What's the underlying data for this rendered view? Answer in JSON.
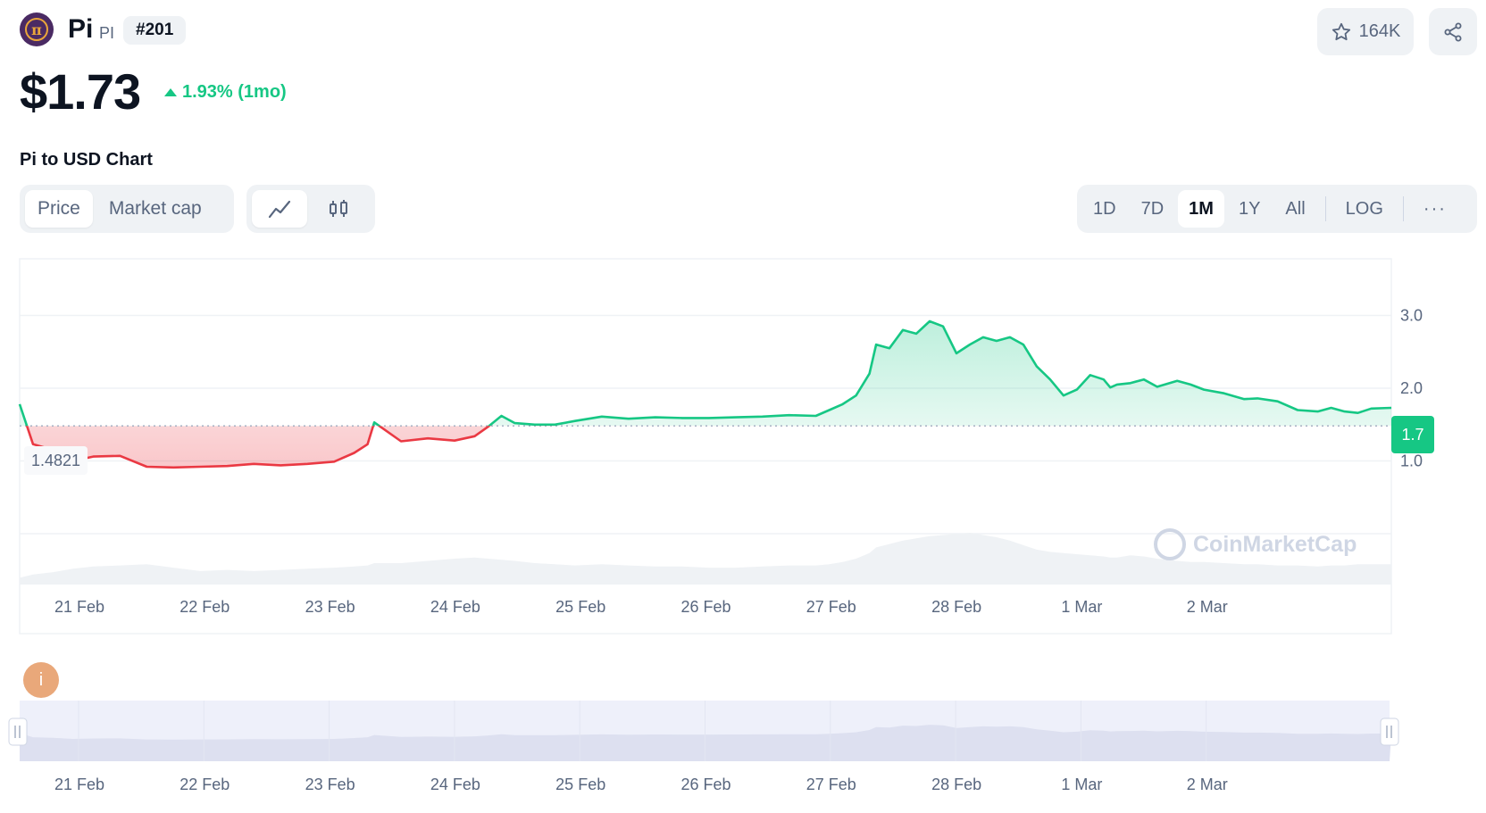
{
  "header": {
    "coin_name": "Pi",
    "coin_symbol": "PI",
    "rank": "#201",
    "watchlist_count": "164K",
    "price": "$1.73",
    "change": "1.93% (1mo)"
  },
  "chart_section": {
    "title": "Pi to USD Chart",
    "tabs": [
      "Price",
      "Market cap"
    ],
    "chart_types": [
      "line-chart-icon",
      "candlestick-icon"
    ],
    "ranges": [
      "1D",
      "7D",
      "1M",
      "1Y",
      "All",
      "LOG"
    ],
    "active_range": "1M",
    "more_label": "···",
    "watermark": "CoinMarketCap"
  },
  "colors": {
    "up": "#16c784",
    "down": "#ea3943",
    "text_secondary": "#58667e"
  },
  "chart_data": {
    "type": "line",
    "baseline_value": 1.4821,
    "baseline_label": "1.4821",
    "current_label": "1.7",
    "y_ticks": [
      "3.0",
      "2.0",
      "1.0"
    ],
    "x_ticks": [
      "21 Feb",
      "22 Feb",
      "23 Feb",
      "24 Feb",
      "25 Feb",
      "26 Feb",
      "27 Feb",
      "28 Feb",
      "1 Mar",
      "2 Mar"
    ],
    "ylim": [
      0.0,
      3.5
    ],
    "x_range": [
      20.35,
      30.6
    ],
    "x": [
      20.35,
      20.45,
      20.6,
      20.75,
      20.9,
      21.1,
      21.3,
      21.5,
      21.7,
      21.9,
      22.1,
      22.3,
      22.5,
      22.7,
      22.85,
      22.95,
      23.0,
      23.2,
      23.4,
      23.6,
      23.75,
      23.85,
      23.95,
      24.05,
      24.2,
      24.35,
      24.5,
      24.7,
      24.9,
      25.1,
      25.3,
      25.5,
      25.7,
      25.9,
      26.1,
      26.3,
      26.4,
      26.5,
      26.6,
      26.7,
      26.75,
      26.85,
      26.95,
      27.05,
      27.15,
      27.25,
      27.35,
      27.45,
      27.55,
      27.65,
      27.75,
      27.85,
      27.95,
      28.05,
      28.15,
      28.25,
      28.35,
      28.45,
      28.5,
      28.55,
      28.65,
      28.75,
      28.85,
      29.0,
      29.1,
      29.2,
      29.35,
      29.5,
      29.6,
      29.75,
      29.9,
      30.05,
      30.15,
      30.25,
      30.35,
      30.45,
      30.6
    ],
    "y": [
      1.78,
      1.23,
      1.15,
      1.0,
      1.06,
      1.07,
      0.92,
      0.91,
      0.92,
      0.93,
      0.96,
      0.94,
      0.96,
      0.99,
      1.11,
      1.23,
      1.53,
      1.27,
      1.31,
      1.28,
      1.34,
      1.47,
      1.62,
      1.52,
      1.5,
      1.5,
      1.55,
      1.61,
      1.58,
      1.6,
      1.59,
      1.59,
      1.6,
      1.61,
      1.63,
      1.62,
      1.7,
      1.78,
      1.9,
      2.2,
      2.6,
      2.55,
      2.8,
      2.75,
      2.92,
      2.85,
      2.48,
      2.6,
      2.7,
      2.65,
      2.7,
      2.6,
      2.3,
      2.12,
      1.9,
      1.98,
      2.18,
      2.12,
      2.01,
      2.05,
      2.07,
      2.12,
      2.02,
      2.1,
      2.05,
      1.98,
      1.93,
      1.85,
      1.86,
      1.82,
      1.7,
      1.68,
      1.73,
      1.68,
      1.66,
      1.72,
      1.73
    ],
    "volume": [
      0.6,
      0.9,
      1.1,
      1.4,
      1.6,
      1.7,
      1.8,
      1.5,
      1.2,
      1.3,
      1.2,
      1.3,
      1.4,
      1.5,
      1.6,
      1.7,
      1.9,
      1.9,
      2.1,
      2.3,
      2.4,
      2.3,
      2.2,
      2.1,
      1.9,
      1.8,
      1.7,
      1.8,
      1.7,
      1.6,
      1.6,
      1.5,
      1.5,
      1.6,
      1.7,
      1.7,
      1.8,
      2.0,
      2.3,
      2.8,
      3.3,
      3.6,
      3.9,
      4.1,
      4.3,
      4.4,
      4.5,
      4.6,
      4.4,
      4.2,
      3.9,
      3.5,
      3.1,
      2.9,
      2.8,
      2.7,
      2.6,
      2.5,
      2.4,
      2.4,
      2.6,
      2.5,
      2.3,
      2.1,
      2.0,
      2.0,
      1.9,
      1.8,
      1.8,
      1.7,
      1.7,
      1.6,
      1.7,
      1.7,
      1.8,
      1.8,
      1.8
    ]
  }
}
